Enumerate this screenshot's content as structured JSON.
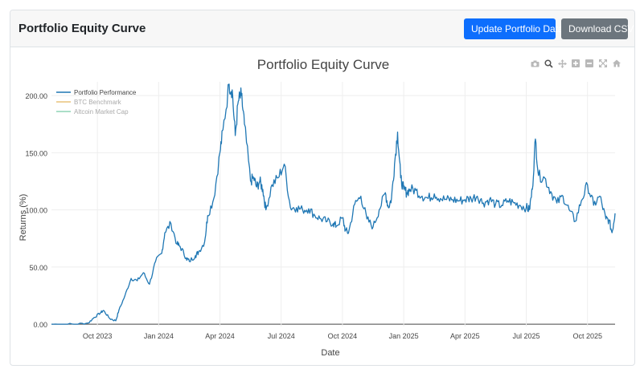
{
  "header": {
    "title": "Portfolio Equity Curve",
    "update_button": "Update Portfolio Data",
    "download_button": "Download CSV"
  },
  "modebar": [
    "camera-icon",
    "zoom-icon",
    "pan-icon",
    "zoom-in-icon",
    "zoom-out-icon",
    "autoscale-icon",
    "reset-axes-icon"
  ],
  "colors": {
    "portfolio": "#1f77b4",
    "btc": "#e8c27a",
    "altcoin": "#8fd3b6",
    "primary_button": "#0d6efd",
    "secondary_button": "#6c757d"
  },
  "chart_data": {
    "type": "line",
    "title": "Portfolio Equity Curve",
    "xlabel": "Date",
    "ylabel": "Returns (%)",
    "ylim": [
      -2,
      212
    ],
    "yticks": [
      0,
      50,
      100,
      150,
      200
    ],
    "ytick_labels": [
      "0.00",
      "50.00",
      "100.00",
      "150.00",
      "200.00"
    ],
    "xticks": [
      "Oct 2023",
      "Jan 2024",
      "Apr 2024",
      "Jul 2024",
      "Oct 2024",
      "Jan 2025",
      "Apr 2025",
      "Jul 2025",
      "Oct 2025"
    ],
    "xlim": [
      -0.75,
      8.45
    ],
    "grid": true,
    "legend_position": "top-left",
    "series": [
      {
        "name": "Portfolio Performance",
        "x": [
          -0.75,
          -0.55,
          -0.35,
          -0.15,
          -0.05,
          0.05,
          0.1,
          0.2,
          0.3,
          0.35,
          0.45,
          0.55,
          0.65,
          0.75,
          0.85,
          0.95,
          1.05,
          1.1,
          1.2,
          1.3,
          1.35,
          1.45,
          1.5,
          1.6,
          1.65,
          1.75,
          1.8,
          1.9,
          2.0,
          2.05,
          2.15,
          2.2,
          2.25,
          2.3,
          2.35,
          2.4,
          2.5,
          2.55,
          2.6,
          2.65,
          2.7,
          2.75,
          2.85,
          2.95,
          3.05,
          3.15,
          3.25,
          3.35,
          3.45,
          3.55,
          3.65,
          3.75,
          3.85,
          3.9,
          4.0,
          4.05,
          4.1,
          4.2,
          4.3,
          4.4,
          4.5,
          4.6,
          4.7,
          4.75,
          4.8,
          4.85,
          4.9,
          4.95,
          5.0,
          5.05,
          5.1,
          5.2,
          5.3,
          5.4,
          5.5,
          5.6,
          5.7,
          5.8,
          5.9,
          6.0,
          6.1,
          6.2,
          6.3,
          6.4,
          6.5,
          6.6,
          6.7,
          6.8,
          6.9,
          7.0,
          7.05,
          7.1,
          7.15,
          7.2,
          7.3,
          7.4,
          7.5,
          7.6,
          7.7,
          7.8,
          7.9,
          8.0,
          8.1,
          8.2,
          8.3,
          8.35,
          8.4,
          8.45
        ],
        "values": [
          0,
          0,
          0,
          1,
          6,
          10,
          12,
          5,
          3,
          12,
          25,
          40,
          38,
          45,
          35,
          55,
          62,
          80,
          88,
          70,
          68,
          58,
          55,
          60,
          63,
          72,
          95,
          110,
          150,
          170,
          210,
          205,
          165,
          195,
          200,
          175,
          125,
          128,
          120,
          125,
          118,
          100,
          122,
          128,
          140,
          102,
          102,
          100,
          101,
          95,
          92,
          90,
          88,
          86,
          93,
          82,
          80,
          105,
          112,
          92,
          85,
          100,
          115,
          102,
          110,
          140,
          168,
          128,
          118,
          115,
          118,
          117,
          112,
          110,
          114,
          110,
          109,
          109,
          108,
          109,
          110,
          112,
          106,
          109,
          105,
          104,
          108,
          106,
          104,
          102,
          100,
          118,
          162,
          130,
          128,
          116,
          106,
          112,
          100,
          90,
          108,
          122,
          104,
          112,
          92,
          91,
          80,
          97
        ]
      },
      {
        "name": "BTC Benchmark",
        "x": [],
        "values": []
      },
      {
        "name": "Altcoin Market Cap",
        "x": [],
        "values": []
      }
    ]
  }
}
